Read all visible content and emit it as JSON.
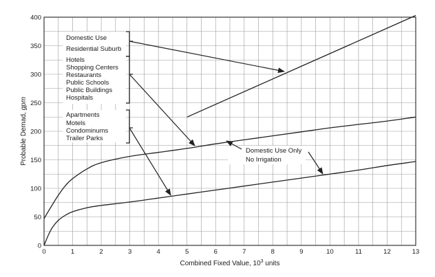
{
  "chart_data": {
    "type": "line",
    "xlabel_main": "Combined Fixed Value, 10",
    "xlabel_sup": "3",
    "xlabel_tail": " units",
    "ylabel_main": "Probable Demad, ",
    "ylabel_unit": "gpm",
    "xlim": [
      0,
      13
    ],
    "ylim": [
      0,
      400
    ],
    "x_ticks": [
      0,
      1,
      2,
      3,
      4,
      5,
      6,
      7,
      8,
      9,
      10,
      11,
      12,
      13
    ],
    "y_ticks": [
      0,
      50,
      100,
      150,
      200,
      250,
      300,
      350,
      400
    ],
    "grid": true,
    "series": [
      {
        "key": "domestic-residential",
        "x": [
          5,
          13
        ],
        "y": [
          225,
          403
        ]
      },
      {
        "key": "commercial",
        "x": [
          0,
          0.25,
          0.5,
          0.75,
          1,
          1.5,
          2,
          3,
          4,
          5,
          6,
          7,
          8,
          9,
          10,
          11,
          12,
          13
        ],
        "y": [
          47,
          68,
          88,
          105,
          117,
          134,
          145,
          156,
          163,
          170,
          178,
          185,
          192,
          199,
          206,
          212,
          218,
          225
        ]
      },
      {
        "key": "apartments",
        "x": [
          0,
          0.15,
          0.3,
          0.5,
          0.75,
          1,
          1.5,
          2,
          3,
          4,
          5,
          6,
          7,
          8,
          9,
          10,
          11,
          12,
          13
        ],
        "y": [
          0,
          18,
          32,
          44,
          53,
          59,
          66,
          70,
          76,
          83,
          90,
          97,
          104,
          111,
          118,
          125,
          132,
          140,
          147
        ]
      }
    ],
    "groups": [
      {
        "key": "residential",
        "labels": [
          "Domestic Use",
          "Residential Suburb"
        ]
      },
      {
        "key": "commercial",
        "labels": [
          "Hotels",
          "Shopping Centers",
          "Restaurants",
          "Public Schools",
          "Public Buildings",
          "Hospitals"
        ]
      },
      {
        "key": "apartments",
        "labels": [
          "Apartments",
          "Motels",
          "Condominums",
          "Trailer Parks"
        ]
      }
    ],
    "annotation": [
      "Domestic Use Only",
      "No Irrigation"
    ]
  }
}
